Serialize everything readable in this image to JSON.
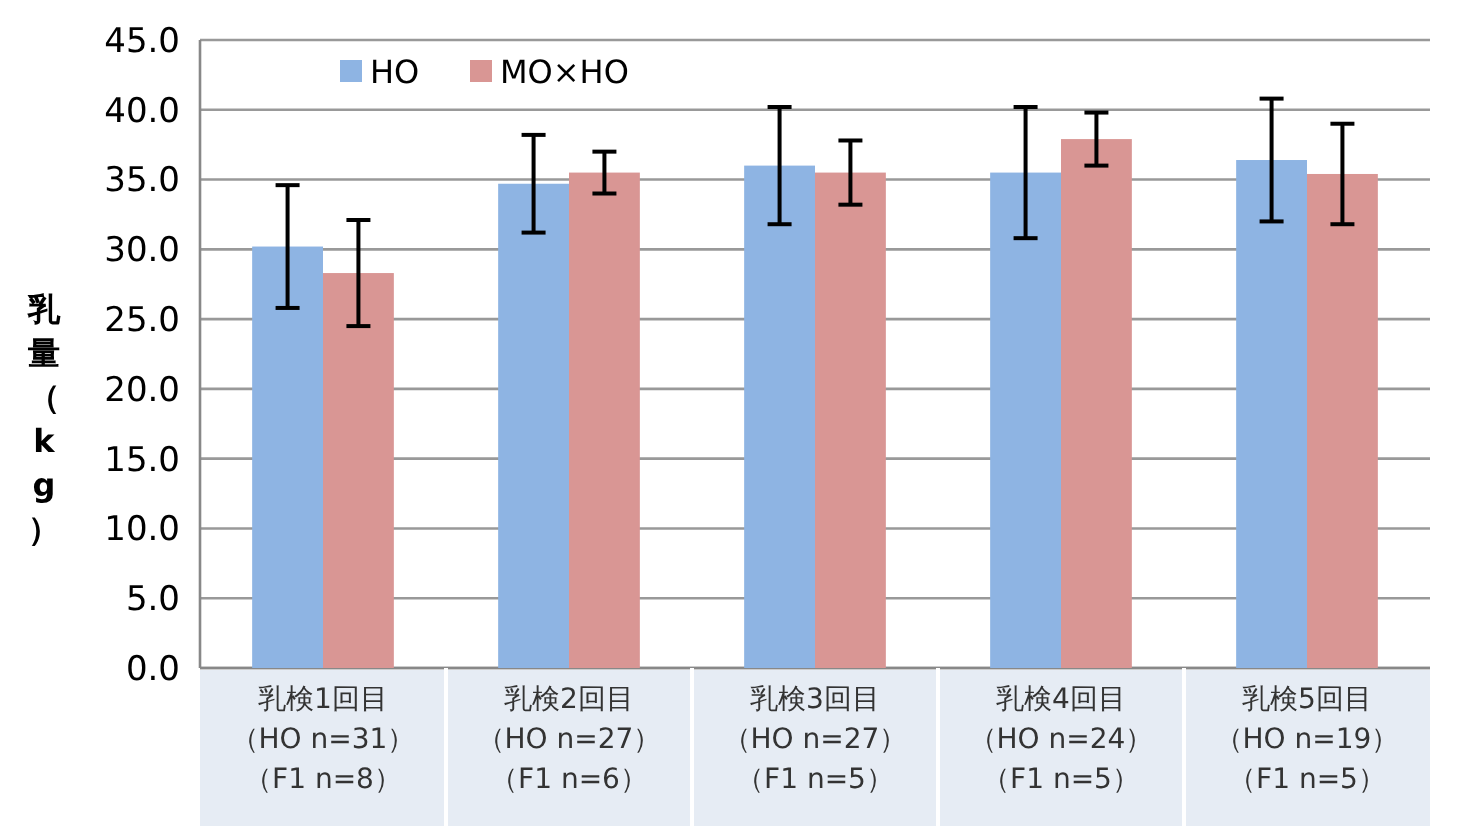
{
  "chart_data": {
    "type": "bar",
    "ylabel": "乳量（kg）",
    "categories": [
      "乳検1回目（HO n=31）（F1 n=8）",
      "乳検2回目（HO n=27）（F1 n=6）",
      "乳検3回目（HO n=27）（F1 n=5）",
      "乳検4回目（HO n=24）（F1 n=5）",
      "乳検5回目（HO n=19）（F1 n=5）"
    ],
    "series": [
      {
        "name": "HO",
        "color": "#8eb4e3",
        "values": [
          30.2,
          34.7,
          36.0,
          35.5,
          36.4
        ],
        "errors": [
          4.4,
          3.5,
          4.2,
          4.7,
          4.4
        ]
      },
      {
        "name": "MO×HO",
        "color": "#d99694",
        "values": [
          28.3,
          35.5,
          35.5,
          37.9,
          35.4
        ],
        "errors": [
          3.8,
          1.5,
          2.3,
          1.9,
          3.6
        ]
      }
    ],
    "ylim": [
      0,
      45
    ],
    "yticks": [
      {
        "value": 0,
        "label": "0.0"
      },
      {
        "value": 5,
        "label": "5.0"
      },
      {
        "value": 10,
        "label": "10.0"
      },
      {
        "value": 15,
        "label": "15.0"
      },
      {
        "value": 20,
        "label": "20.0"
      },
      {
        "value": 25,
        "label": "25.0"
      },
      {
        "value": 30,
        "label": "30.0"
      },
      {
        "value": 35,
        "label": "35.0"
      },
      {
        "value": 40,
        "label": "40.0"
      },
      {
        "value": 45,
        "label": "45.0"
      }
    ],
    "grid": "y",
    "legend": "top"
  }
}
